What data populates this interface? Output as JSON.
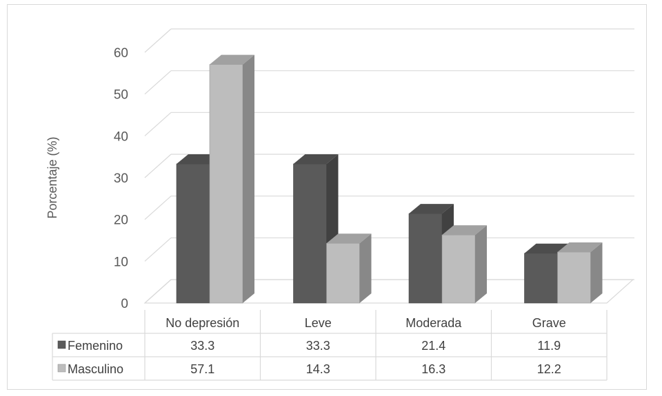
{
  "chart_data": {
    "type": "bar",
    "ylabel": "Porcentaje (%)",
    "ylim": [
      0,
      60
    ],
    "yticks": [
      0,
      10,
      20,
      30,
      40,
      50,
      60
    ],
    "categories": [
      "No depresión",
      "Leve",
      "Moderada",
      "Grave"
    ],
    "series": [
      {
        "name": "Femenino",
        "values": [
          33.3,
          33.3,
          21.4,
          11.9
        ],
        "color": "#5a5a5a"
      },
      {
        "name": "Masculino",
        "values": [
          57.1,
          14.3,
          16.3,
          12.2
        ],
        "color": "#bdbdbd"
      }
    ],
    "grid": true,
    "legend": "data-table",
    "style": "3d-column"
  }
}
